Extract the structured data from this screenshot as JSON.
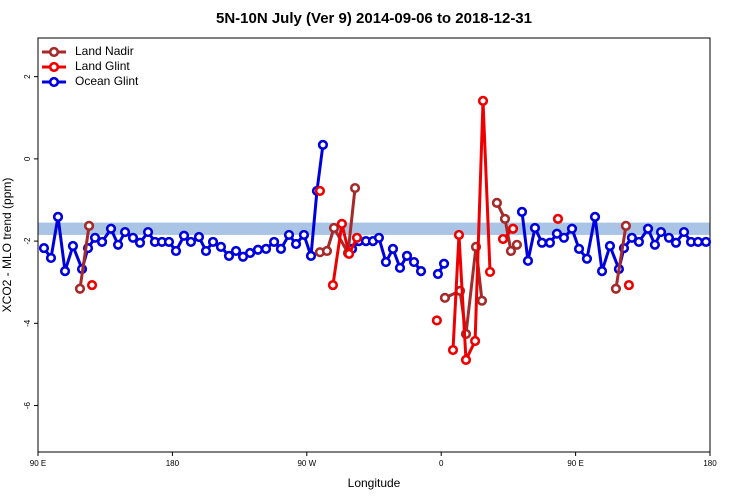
{
  "chart_data": {
    "type": "line",
    "title": "5N-10N July (Ver 9)   2014-09-06 to 2018-12-31",
    "x_label": "Longitude",
    "y_label": "XCO2 - MLO trend (ppm)",
    "xlim": [
      90,
      540
    ],
    "ylim": [
      -7.13,
      2.94
    ],
    "xticks": [
      {
        "value": 90,
        "label": "90 E"
      },
      180,
      {
        "value": 270,
        "label": "90 W"
      },
      {
        "value": 360,
        "label": "0"
      },
      {
        "value": 450,
        "label": "90 E"
      },
      180
    ],
    "yticks": [
      -6,
      -4,
      -2,
      0,
      2
    ],
    "reference_band": {
      "range": [
        -1.85,
        -1.55
      ],
      "color": "#a9c4e4"
    },
    "legend": "top-left",
    "series": [
      {
        "name": "Land Nadir",
        "color": "#a52a2a",
        "x": [
          118.1,
          124.2,
          null,
          278.8,
          283.5,
          288.2,
          297.6,
          302.3,
          null,
          362.5,
          372.6,
          376.6,
          383.3,
          387.3,
          null,
          397.3,
          402.7,
          406.7,
          410.7,
          null,
          477.0,
          483.7
        ],
        "values": [
          -3.16,
          -1.63,
          null,
          -2.27,
          -2.24,
          -1.68,
          -2.29,
          -0.71,
          null,
          -3.38,
          -3.21,
          -4.26,
          -2.14,
          -3.45,
          null,
          -1.07,
          -1.46,
          -2.24,
          -2.09,
          null,
          -3.16,
          -1.63
        ]
      },
      {
        "name": "Land Glint",
        "color": "#ee0000",
        "x": [
          126.2,
          null,
          278.8,
          null,
          287.5,
          293.5,
          298.3,
          303.6,
          null,
          357.1,
          null,
          367.9,
          371.9,
          376.6,
          382.7,
          388.0,
          392.7,
          null,
          401.4,
          408.1,
          null,
          438.2,
          null,
          485.7
        ],
        "values": [
          -3.07,
          null,
          -0.78,
          null,
          -3.07,
          -1.58,
          -2.31,
          -1.92,
          null,
          -3.93,
          null,
          -4.65,
          -1.85,
          -4.89,
          -4.43,
          1.41,
          -2.75,
          null,
          -1.95,
          -1.7,
          null,
          -1.46,
          null,
          -3.07
        ]
      },
      {
        "name": "Ocean Glint",
        "color": "#0000dd",
        "x": [
          94.0,
          98.7,
          103.4,
          108.1,
          113.4,
          119.5,
          123.5,
          128.2,
          132.9,
          138.9,
          143.6,
          148.3,
          153.6,
          158.3,
          163.7,
          168.3,
          173.0,
          177.7,
          182.4,
          187.8,
          192.4,
          197.8,
          202.5,
          207.2,
          212.5,
          217.9,
          222.6,
          227.3,
          232.0,
          237.3,
          242.7,
          248.1,
          252.7,
          258.1,
          262.8,
          268.1,
          272.8,
          276.8,
          280.8,
          null,
          300.3,
          304.9,
          309.6,
          314.3,
          318.3,
          323.0,
          327.7,
          332.4,
          337.1,
          341.8,
          346.5,
          null,
          357.8,
          361.9,
          null,
          414.1,
          418.1,
          422.8,
          427.5,
          432.8,
          437.5,
          442.2,
          447.6,
          452.3,
          457.6,
          463.0,
          467.7,
          473.0,
          479.0,
          482.4,
          487.7,
          492.4,
          498.5,
          503.1,
          507.2,
          512.5,
          517.2,
          522.6,
          527.3,
          532.0,
          537.3
        ],
        "values": [
          -2.17,
          -2.41,
          -1.41,
          -2.73,
          -2.12,
          -2.68,
          -2.17,
          -1.92,
          -2.02,
          -1.7,
          -2.09,
          -1.78,
          -1.92,
          -2.04,
          -1.78,
          -2.02,
          -2.02,
          -2.02,
          -2.24,
          -1.87,
          -2.02,
          -1.9,
          -2.24,
          -2.02,
          -2.14,
          -2.36,
          -2.24,
          -2.38,
          -2.29,
          -2.21,
          -2.19,
          -2.02,
          -2.19,
          -1.85,
          -2.07,
          -1.85,
          -2.36,
          -0.78,
          0.34,
          null,
          -2.19,
          -2.0,
          -2.0,
          -2.0,
          -1.92,
          -2.51,
          -2.19,
          -2.65,
          -2.36,
          -2.51,
          -2.73,
          null,
          -2.8,
          -2.55,
          null,
          -1.29,
          -2.48,
          -1.68,
          -2.04,
          -2.04,
          -1.82,
          -1.92,
          -1.7,
          -2.19,
          -2.43,
          -1.41,
          -2.73,
          -2.12,
          -2.68,
          -2.17,
          -1.92,
          -2.02,
          -1.7,
          -2.09,
          -1.78,
          -1.92,
          -2.04,
          -1.78,
          -2.02,
          -2.02,
          -2.02
        ]
      }
    ]
  }
}
